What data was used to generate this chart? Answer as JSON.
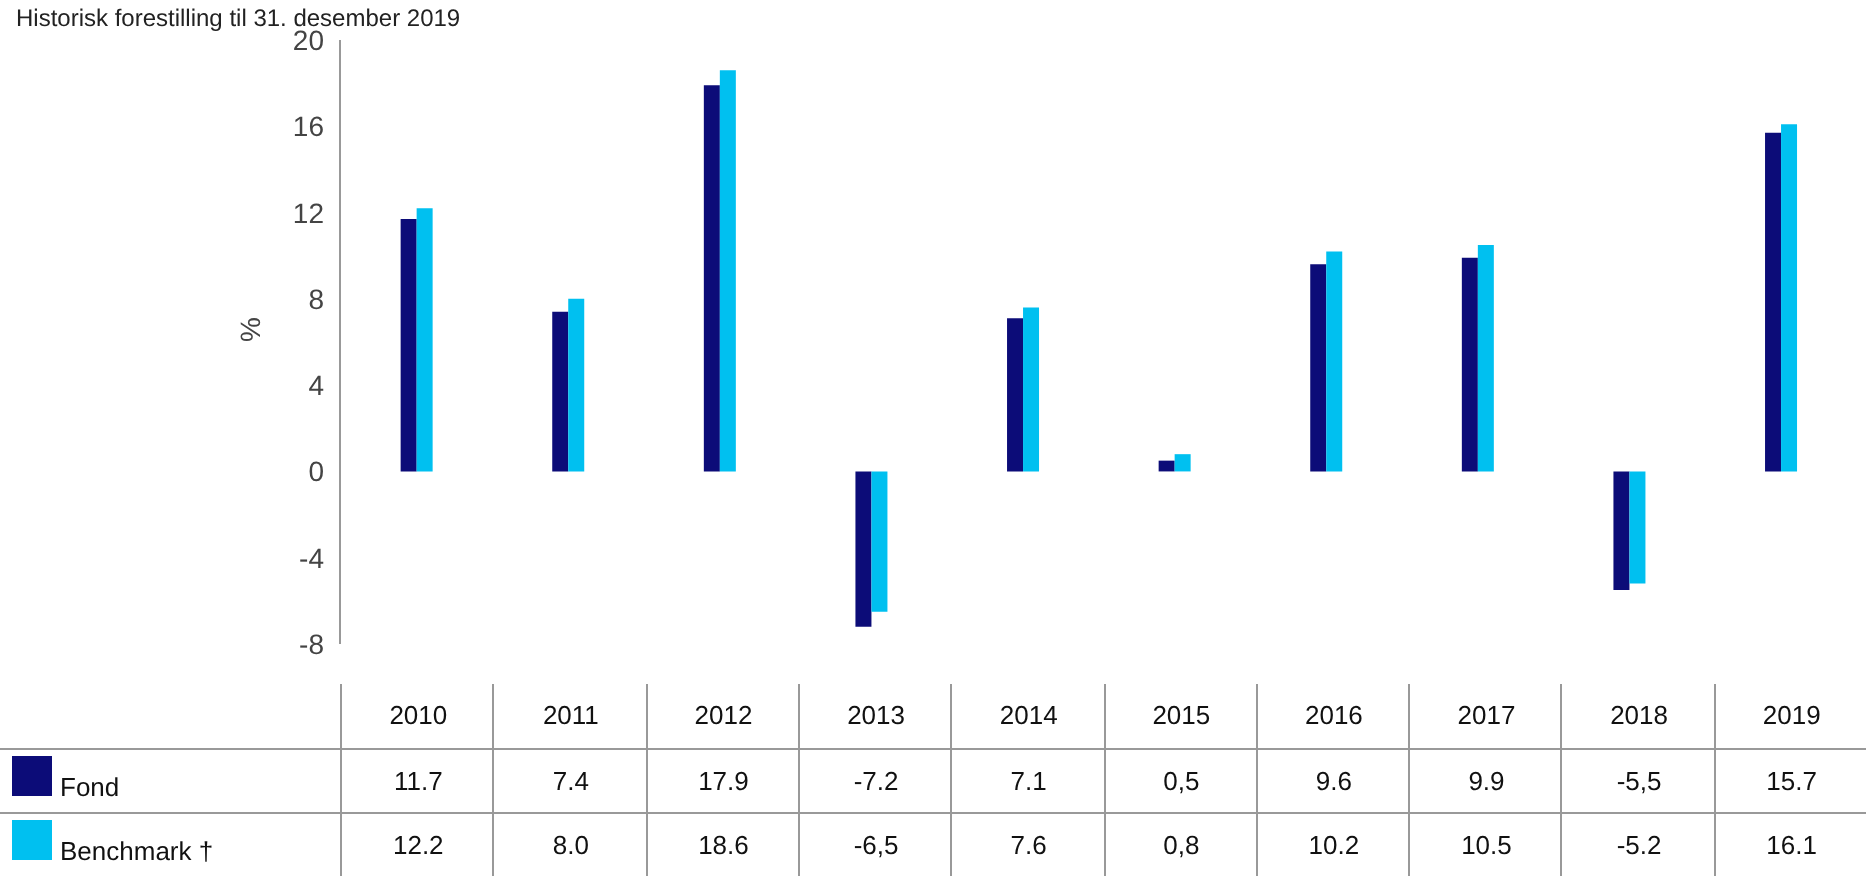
{
  "chart_data": {
    "type": "bar",
    "title": "Historisk forestilling til 31. desember 2019",
    "ylabel": "%",
    "categories": [
      "2010",
      "2011",
      "2012",
      "2013",
      "2014",
      "2015",
      "2016",
      "2017",
      "2018",
      "2019"
    ],
    "series": [
      {
        "name": "Fond",
        "color": "#0c0c78",
        "values": [
          11.7,
          7.4,
          17.9,
          -7.2,
          7.1,
          0.5,
          9.6,
          9.9,
          -5.5,
          15.7
        ],
        "value_labels": [
          "11.7",
          "7.4",
          "17.9",
          "-7.2",
          "7.1",
          "0,5",
          "9.6",
          "9.9",
          "-5,5",
          "15.7"
        ]
      },
      {
        "name": "Benchmark †",
        "color": "#00c0f0",
        "values": [
          12.2,
          8.0,
          18.6,
          -6.5,
          7.6,
          0.8,
          10.2,
          10.5,
          -5.2,
          16.1
        ],
        "value_labels": [
          "12.2",
          "8.0",
          "18.6",
          "-6,5",
          "7.6",
          "0,8",
          "10.2",
          "10.5",
          "-5.2",
          "16.1"
        ]
      }
    ],
    "ylim": [
      -8,
      20
    ],
    "yticks": [
      -8,
      -4,
      0,
      4,
      8,
      12,
      16,
      20
    ],
    "grid": false,
    "legend": "bottom",
    "tick_labels": "y"
  }
}
